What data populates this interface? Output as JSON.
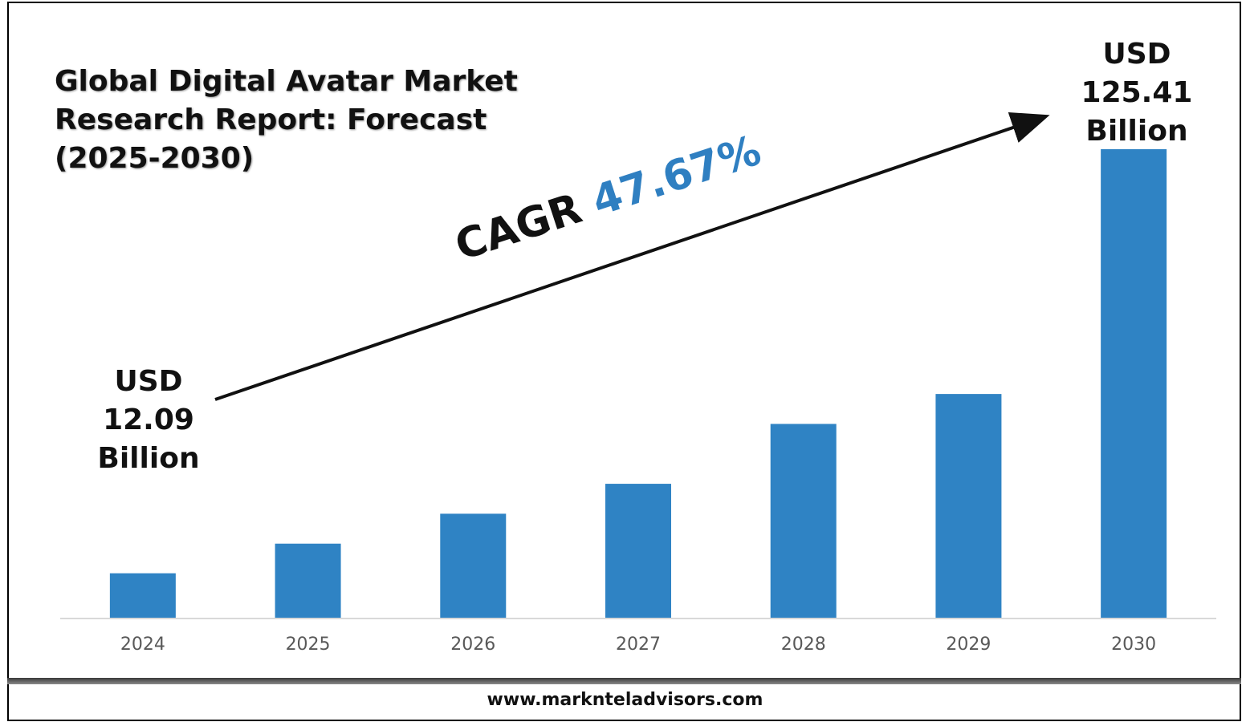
{
  "title_lines": [
    "Global Digital Avatar Market",
    "Research Report: Forecast",
    "(2025-2030)"
  ],
  "cagr": {
    "label": "CAGR",
    "value": "47.67%"
  },
  "start_label": [
    "USD",
    "12.09",
    "Billion"
  ],
  "end_label": [
    "USD",
    "125.41",
    "Billion"
  ],
  "footer": {
    "url": "www.marknteladvisors.com"
  },
  "colors": {
    "bar": "#2f83c4",
    "cagr_value": "#2f7fc1"
  },
  "chart_data": {
    "type": "bar",
    "title": "Global Digital Avatar Market Research Report: Forecast (2025-2030)",
    "categories": [
      "2024",
      "2025",
      "2026",
      "2027",
      "2028",
      "2029",
      "2030"
    ],
    "values": [
      12.09,
      20.0,
      28.0,
      36.0,
      52.0,
      60.0,
      125.41
    ],
    "unit": "USD Billion",
    "xlabel": "",
    "ylabel": "",
    "ylim": [
      0,
      130
    ],
    "grid": false,
    "legend": "none",
    "annotations": [
      "USD 12.09 Billion",
      "USD 125.41 Billion",
      "CAGR 47.67%"
    ]
  }
}
